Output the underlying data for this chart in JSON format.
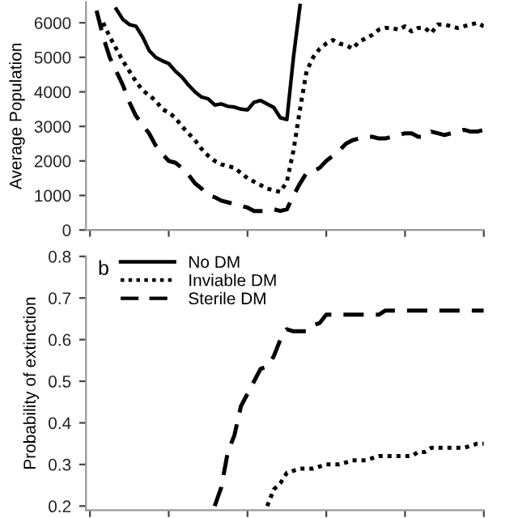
{
  "chart_data": [
    {
      "type": "line",
      "ylabel": "Average Population",
      "categories": [
        null,
        null,
        null,
        null,
        null,
        null,
        null,
        null,
        null,
        null,
        null,
        null,
        null,
        null,
        null,
        null,
        null,
        null,
        null,
        null,
        null,
        null,
        null,
        null,
        null,
        null,
        null,
        null,
        null,
        null,
        null,
        null,
        null,
        null,
        null,
        null,
        null,
        null,
        null,
        null,
        null,
        null,
        null,
        null,
        null,
        null,
        null,
        null,
        null,
        null,
        null,
        null,
        null,
        null,
        null,
        null,
        null,
        null,
        null,
        null,
        null
      ],
      "ylim": [
        0,
        6600
      ],
      "yticks": [
        0,
        1000,
        2000,
        3000,
        4000,
        5000,
        6000
      ],
      "tick_labels": "y",
      "grid": false,
      "legend": false,
      "marker": "none",
      "series": [
        {
          "color": "#000000",
          "line_style": "solid",
          "values": [
            null,
            null,
            null,
            null,
            6400,
            6100,
            5950,
            5900,
            5600,
            5200,
            5000,
            4900,
            4820,
            4600,
            4430,
            4200,
            4000,
            3850,
            3800,
            3620,
            3650,
            3580,
            3560,
            3500,
            3480,
            3700,
            3750,
            3650,
            3550,
            3250,
            3200,
            5000,
            6500,
            null,
            null,
            null,
            null,
            null,
            null,
            null,
            null,
            null,
            null,
            null,
            null,
            null,
            null,
            null,
            null,
            null,
            null,
            null,
            null,
            null,
            null,
            null,
            null,
            null,
            null,
            null,
            null
          ]
        },
        {
          "color": "#000000",
          "line_style": "dotted",
          "values": [
            null,
            null,
            6000,
            5600,
            5250,
            4900,
            4600,
            4300,
            4050,
            3900,
            3750,
            3500,
            3400,
            3250,
            3000,
            2800,
            2600,
            2350,
            2150,
            2000,
            1900,
            1850,
            1800,
            1650,
            1500,
            1400,
            1300,
            1200,
            1150,
            1100,
            1400,
            2300,
            3500,
            4600,
            5000,
            5250,
            5400,
            5500,
            5400,
            5350,
            5250,
            5450,
            5550,
            5650,
            5800,
            5850,
            5850,
            5800,
            5900,
            5750,
            5850,
            5850,
            5700,
            5950,
            5950,
            5900,
            5850,
            5900,
            5950,
            6000,
            5900
          ]
        },
        {
          "color": "#000000",
          "line_style": "dashed",
          "values": [
            null,
            6350,
            5600,
            5000,
            4600,
            4200,
            3700,
            3300,
            3050,
            2800,
            2450,
            2200,
            2000,
            1950,
            1800,
            1600,
            1350,
            1200,
            1000,
            950,
            850,
            800,
            750,
            700,
            650,
            550,
            550,
            550,
            600,
            550,
            600,
            1000,
            1350,
            1650,
            1700,
            1800,
            2000,
            2150,
            2300,
            2500,
            2600,
            2650,
            2700,
            2700,
            2650,
            2650,
            2700,
            2750,
            2800,
            2800,
            2700,
            2700,
            2850,
            2800,
            2750,
            2800,
            2850,
            2900,
            2850,
            2850,
            2900
          ]
        }
      ]
    },
    {
      "type": "line",
      "ylabel": "Probability of extinction",
      "annotations": [
        "b"
      ],
      "categories": [
        null,
        null,
        null,
        null,
        null,
        null,
        null,
        null,
        null,
        null,
        null,
        null,
        null,
        null,
        null,
        null,
        null,
        null,
        null,
        null,
        null,
        null,
        null,
        null,
        null,
        null,
        null,
        null,
        null,
        null,
        null,
        null,
        null,
        null,
        null,
        null,
        null,
        null,
        null,
        null,
        null,
        null,
        null,
        null,
        null,
        null,
        null,
        null,
        null,
        null,
        null,
        null,
        null,
        null,
        null,
        null,
        null,
        null,
        null,
        null,
        null
      ],
      "ylim": [
        0.19,
        0.8
      ],
      "yticks": [
        0.2,
        0.3,
        0.4,
        0.5,
        0.6,
        0.7,
        0.8
      ],
      "tick_labels": "y",
      "grid": false,
      "legend": "top left",
      "marker": "none",
      "series": [
        {
          "name": "No DM",
          "color": "#000000",
          "line_style": "solid",
          "values": [
            null,
            null,
            null,
            null,
            null,
            null,
            null,
            null,
            null,
            null,
            null,
            null,
            null,
            null,
            null,
            null,
            null,
            null,
            null,
            null,
            null,
            null,
            null,
            null,
            null,
            null,
            null,
            null,
            null,
            null,
            null,
            null,
            null,
            null,
            null,
            null,
            null,
            null,
            null,
            null,
            null,
            null,
            null,
            null,
            null,
            null,
            null,
            null,
            null,
            null,
            null,
            null,
            null,
            null,
            null,
            null,
            null,
            null,
            null,
            null,
            null
          ]
        },
        {
          "name": "Inviable DM",
          "color": "#000000",
          "line_style": "dotted",
          "values": [
            null,
            null,
            null,
            null,
            null,
            null,
            null,
            null,
            null,
            null,
            null,
            null,
            null,
            null,
            null,
            null,
            null,
            null,
            null,
            null,
            null,
            null,
            null,
            null,
            null,
            null,
            null,
            0.2,
            0.24,
            0.255,
            0.28,
            0.285,
            0.29,
            0.29,
            0.29,
            0.295,
            0.3,
            0.3,
            0.3,
            0.305,
            0.31,
            0.31,
            0.31,
            0.315,
            0.32,
            0.32,
            0.32,
            0.32,
            0.32,
            0.32,
            0.33,
            0.33,
            0.34,
            0.34,
            0.34,
            0.34,
            0.34,
            0.34,
            0.345,
            0.35,
            0.35
          ]
        },
        {
          "name": "Sterile DM",
          "color": "#000000",
          "line_style": "dashed",
          "values": [
            null,
            null,
            null,
            null,
            null,
            null,
            null,
            null,
            null,
            null,
            null,
            null,
            null,
            null,
            null,
            null,
            null,
            null,
            null,
            0.2,
            0.245,
            0.33,
            0.37,
            0.44,
            0.47,
            0.5,
            0.53,
            0.535,
            0.56,
            0.6,
            0.625,
            0.62,
            0.62,
            0.62,
            0.635,
            0.64,
            0.66,
            0.66,
            0.66,
            0.66,
            0.66,
            0.66,
            0.66,
            0.66,
            0.66,
            0.67,
            0.67,
            0.67,
            0.67,
            0.67,
            0.67,
            0.67,
            0.67,
            0.67,
            0.67,
            0.67,
            0.67,
            0.67,
            0.67,
            0.67,
            0.67
          ]
        }
      ]
    }
  ]
}
